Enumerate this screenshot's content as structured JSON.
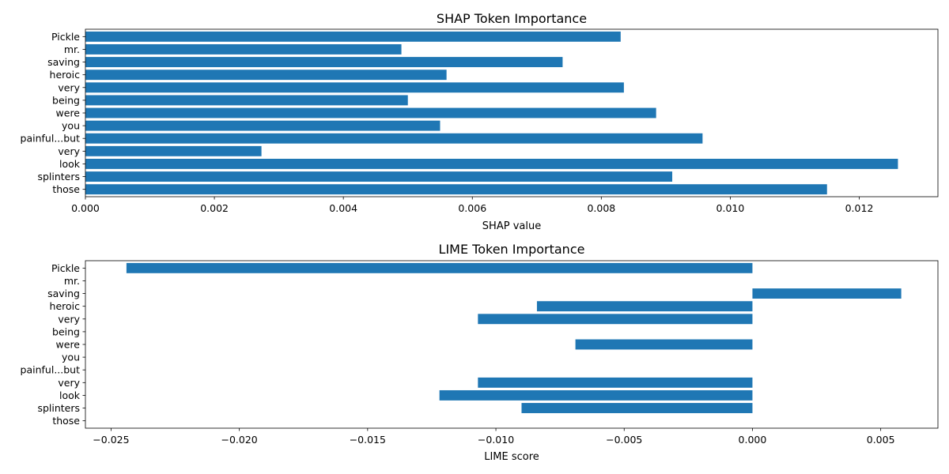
{
  "chart_data": [
    {
      "type": "bar",
      "orientation": "horizontal",
      "title": "SHAP Token Importance",
      "xlabel": "SHAP value",
      "ylabel": "",
      "categories": [
        "Pickle",
        "mr.",
        "saving",
        "heroic",
        "very",
        "being",
        "were",
        "you",
        "painful...but",
        "very",
        "look",
        "splinters",
        "those"
      ],
      "values": [
        0.0083,
        0.0049,
        0.0074,
        0.0056,
        0.00835,
        0.005,
        0.00885,
        0.0055,
        0.00957,
        0.00273,
        0.0126,
        0.0091,
        0.0115
      ],
      "xlim": [
        0,
        0.01322
      ],
      "xticks": [
        0.0,
        0.002,
        0.004,
        0.006,
        0.008,
        0.01,
        0.012
      ],
      "xtick_labels": [
        "0.000",
        "0.002",
        "0.004",
        "0.006",
        "0.008",
        "0.010",
        "0.012"
      ],
      "bar_color": "#1f77b4",
      "grid": false
    },
    {
      "type": "bar",
      "orientation": "horizontal",
      "title": "LIME Token Importance",
      "xlabel": "LIME score",
      "ylabel": "",
      "categories": [
        "Pickle",
        "mr.",
        "saving",
        "heroic",
        "very",
        "being",
        "were",
        "you",
        "painful...but",
        "very",
        "look",
        "splinters",
        "those"
      ],
      "values": [
        -0.0244,
        0,
        0.0058,
        -0.0084,
        -0.0107,
        0,
        -0.0069,
        0,
        0,
        -0.0107,
        -0.0122,
        -0.009,
        0
      ],
      "xlim": [
        -0.026,
        0.00723
      ],
      "xticks": [
        -0.025,
        -0.02,
        -0.015,
        -0.01,
        -0.005,
        0.0,
        0.005
      ],
      "xtick_labels": [
        "−0.025",
        "−0.020",
        "−0.015",
        "−0.010",
        "−0.005",
        "0.000",
        "0.005"
      ],
      "bar_color": "#1f77b4",
      "grid": false
    }
  ]
}
